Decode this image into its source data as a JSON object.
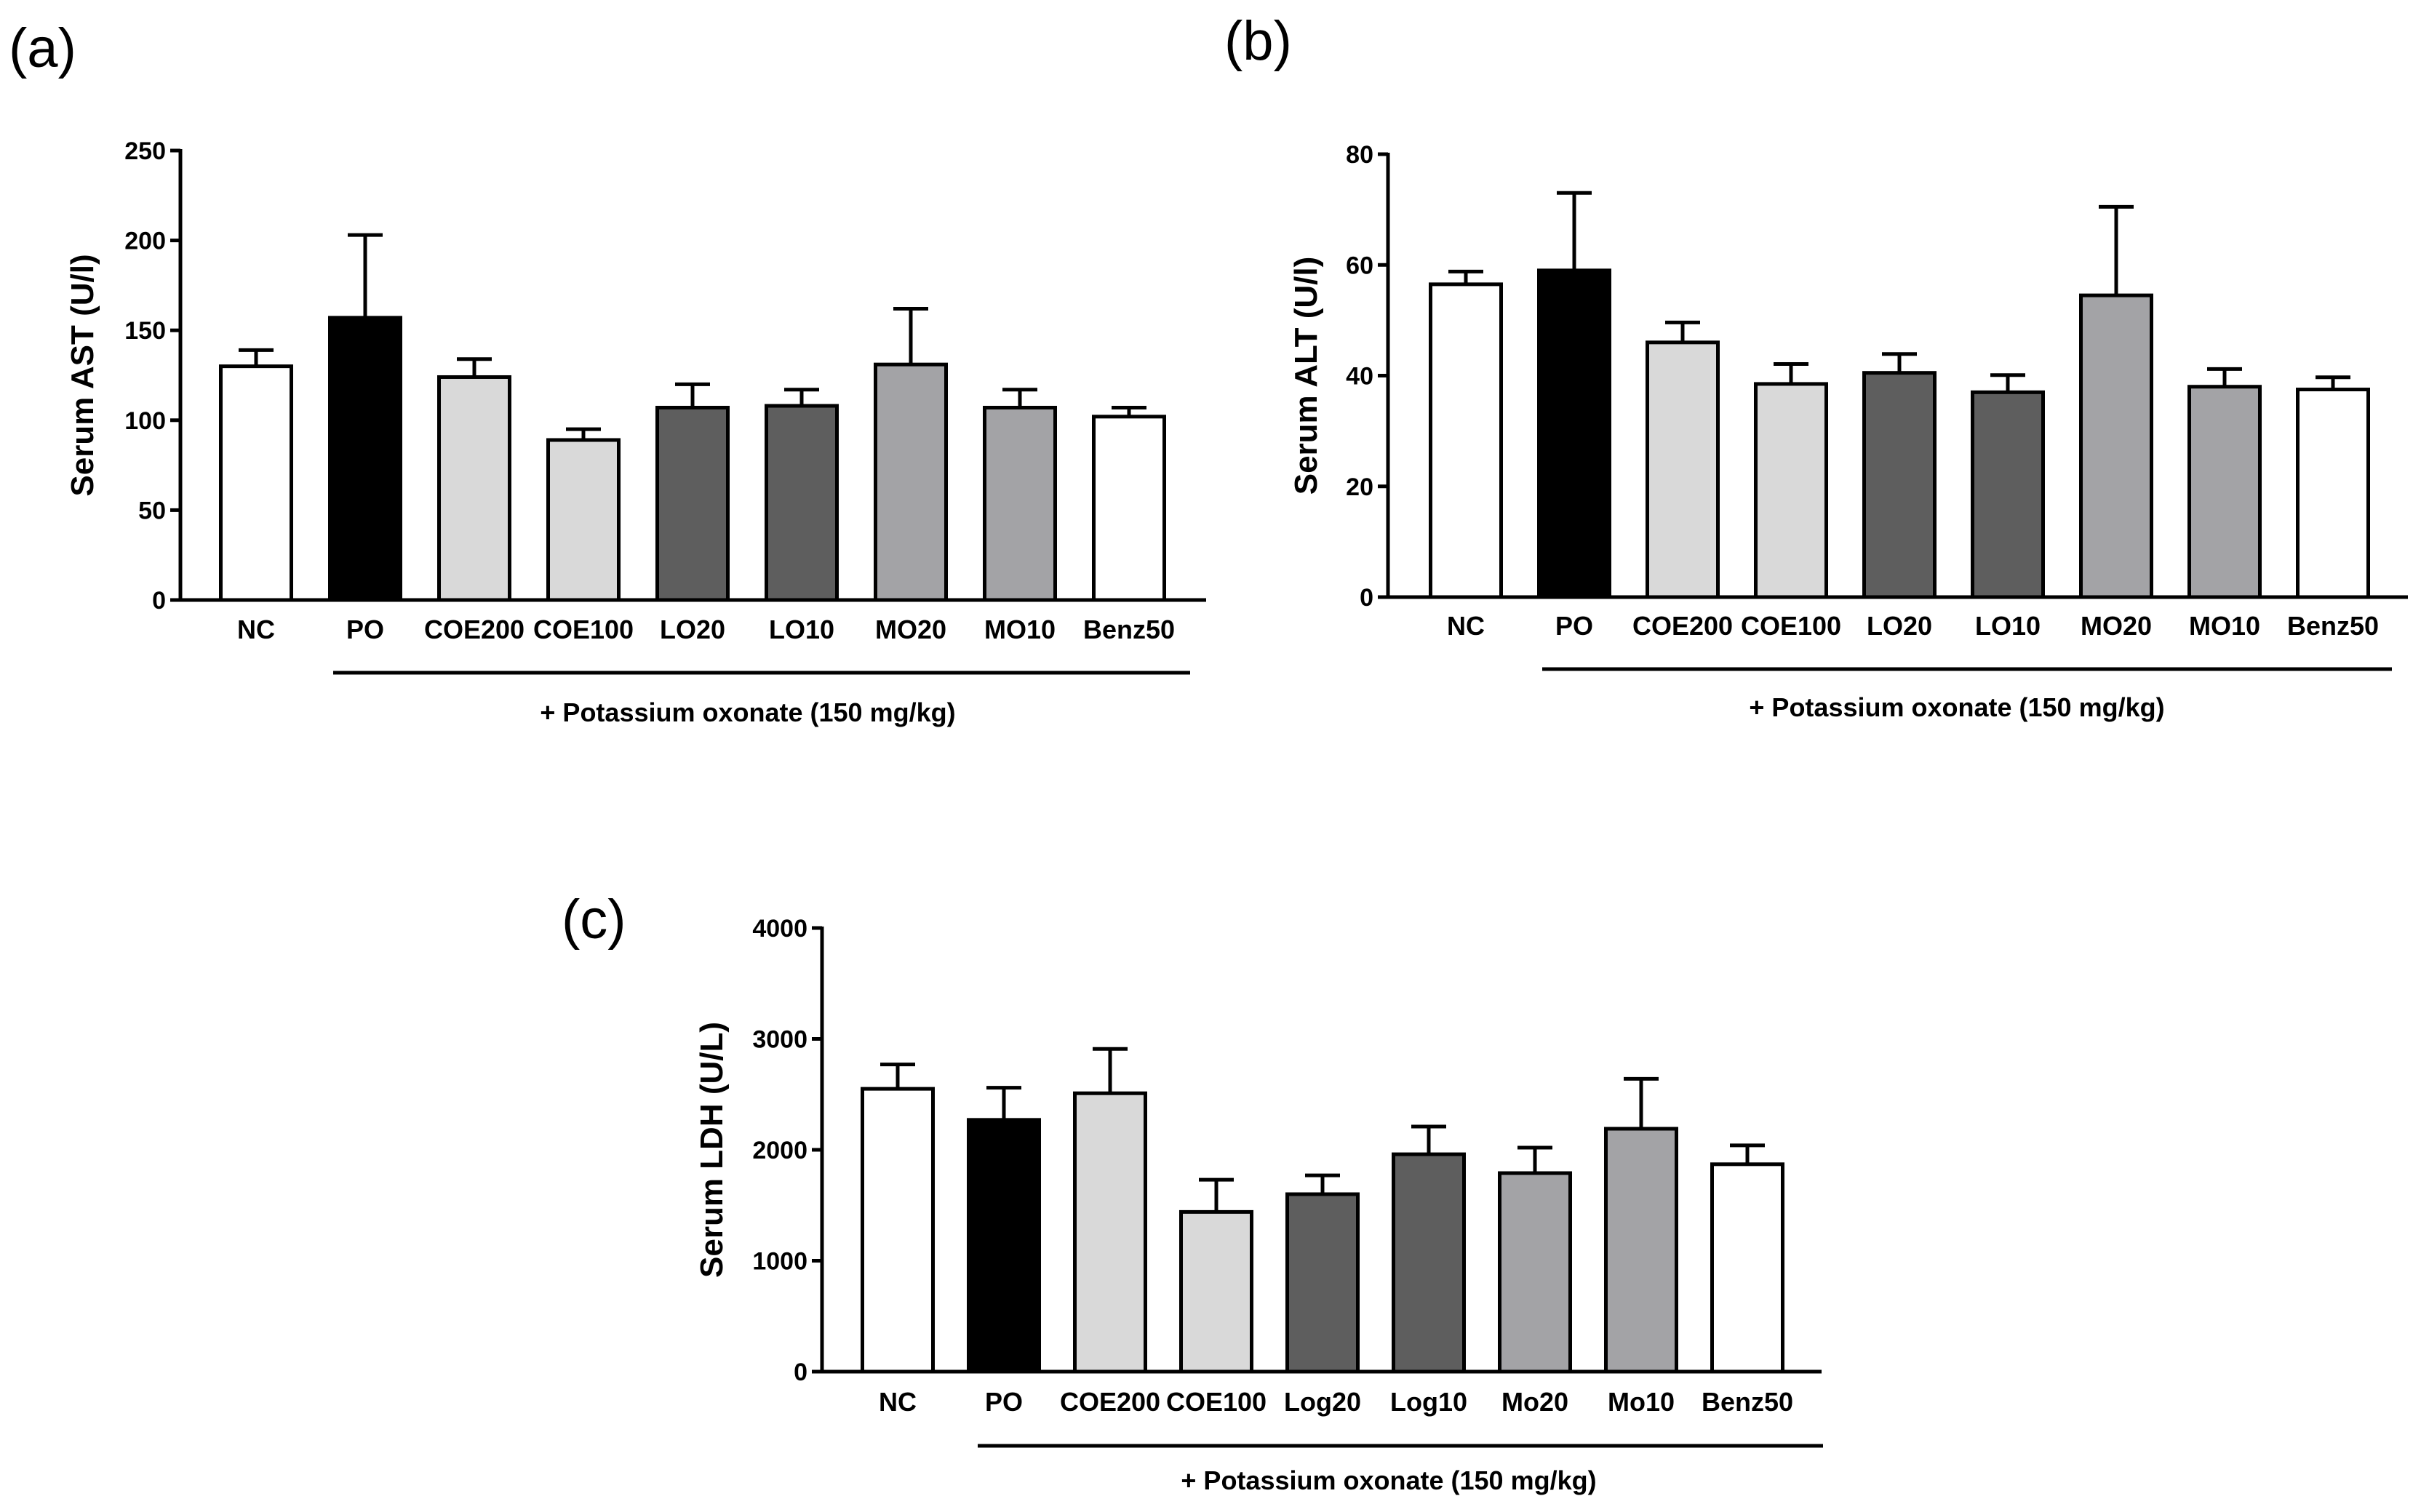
{
  "chart_data": [
    {
      "type": "bar",
      "panel": "(a)",
      "ylabel": "Serum AST (U/l)",
      "ylim": [
        0,
        250
      ],
      "yticks": [
        0,
        50,
        100,
        150,
        200,
        250
      ],
      "categories": [
        "NC",
        "PO",
        "COE200",
        "COE100",
        "LO20",
        "LO10",
        "MO20",
        "MO10",
        "Benz50"
      ],
      "values": [
        130,
        157,
        124,
        89,
        107,
        108,
        131,
        107,
        102
      ],
      "errors": [
        9,
        46,
        10,
        6,
        13,
        9,
        31,
        10,
        5
      ],
      "colors": [
        "#ffffff",
        "#000000",
        "#d9d9d9",
        "#d9d9d9",
        "#5e5e5e",
        "#5e5e5e",
        "#a3a3a6",
        "#a3a3a6",
        "#ffffff"
      ],
      "group_note": "+ Potassium oxonate (150 mg/kg)"
    },
    {
      "type": "bar",
      "panel": "(b)",
      "ylabel": "Serum ALT (U/l)",
      "ylim": [
        0,
        80
      ],
      "yticks": [
        0,
        20,
        40,
        60,
        80
      ],
      "categories": [
        "NC",
        "PO",
        "COE200",
        "COE100",
        "LO20",
        "LO10",
        "MO20",
        "MO10",
        "Benz50"
      ],
      "values": [
        56.5,
        59,
        46,
        38.5,
        40.5,
        37,
        54.5,
        38,
        37.5
      ],
      "errors": [
        2.3,
        14,
        3.6,
        3.6,
        3.4,
        3.1,
        16,
        3.2,
        2.2
      ],
      "colors": [
        "#ffffff",
        "#000000",
        "#d9d9d9",
        "#d9d9d9",
        "#5e5e5e",
        "#5e5e5e",
        "#a3a3a6",
        "#a3a3a6",
        "#ffffff"
      ],
      "group_note": "+ Potassium oxonate (150 mg/kg)"
    },
    {
      "type": "bar",
      "panel": "(c)",
      "ylabel": "Serum LDH (U/L)",
      "ylim": [
        0,
        4000
      ],
      "yticks": [
        0,
        1000,
        2000,
        3000,
        4000
      ],
      "categories": [
        "NC",
        "PO",
        "COE200",
        "COE100",
        "Log20",
        "Log10",
        "Mo20",
        "Mo10",
        "Benz50"
      ],
      "values": [
        2550,
        2270,
        2510,
        1440,
        1600,
        1960,
        1790,
        2190,
        1870
      ],
      "errors": [
        220,
        290,
        400,
        290,
        170,
        250,
        230,
        450,
        170
      ],
      "colors": [
        "#ffffff",
        "#000000",
        "#d9d9d9",
        "#d9d9d9",
        "#5e5e5e",
        "#5e5e5e",
        "#a3a3a6",
        "#a3a3a6",
        "#ffffff"
      ],
      "group_note": "+ Potassium oxonate (150 mg/kg)"
    }
  ]
}
